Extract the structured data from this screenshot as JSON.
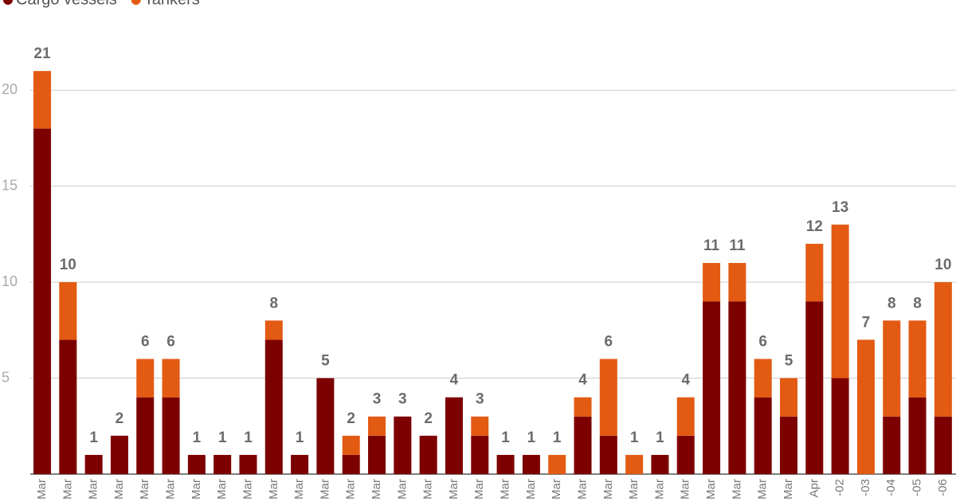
{
  "chart_data": {
    "type": "stacked_bar",
    "categories": [
      "Mar",
      "Mar",
      "Mar",
      "Mar",
      "Mar",
      "Mar",
      "Mar",
      "Mar",
      "Mar",
      "Mar",
      "Mar",
      "Mar",
      "Mar",
      "Mar",
      "Mar",
      "Mar",
      "Mar",
      "Mar",
      "Mar",
      "Mar",
      "Mar",
      "Mar",
      "Mar",
      "Mar",
      "Mar",
      "Mar",
      "Mar",
      "Mar",
      "Mar",
      "Mar",
      "Apr",
      "-02",
      "-03",
      "-04",
      "-05",
      "-06"
    ],
    "series": [
      {
        "name": "Cargo vessels",
        "color": "#7d0000",
        "values": [
          18,
          7,
          1,
          2,
          4,
          4,
          1,
          1,
          1,
          7,
          1,
          5,
          1,
          2,
          3,
          2,
          4,
          2,
          1,
          1,
          0,
          3,
          2,
          0,
          1,
          2,
          9,
          9,
          4,
          3,
          9,
          5,
          0,
          3,
          4,
          3
        ]
      },
      {
        "name": "Tankers",
        "color": "#e35a13",
        "values": [
          3,
          3,
          0,
          0,
          2,
          2,
          0,
          0,
          0,
          1,
          0,
          0,
          1,
          1,
          0,
          0,
          0,
          1,
          0,
          0,
          1,
          1,
          4,
          1,
          0,
          2,
          2,
          2,
          2,
          2,
          3,
          8,
          7,
          5,
          4,
          7
        ]
      }
    ],
    "totals": [
      21,
      10,
      1,
      2,
      6,
      6,
      1,
      1,
      1,
      8,
      1,
      5,
      2,
      3,
      3,
      2,
      4,
      3,
      1,
      1,
      1,
      4,
      6,
      1,
      1,
      4,
      11,
      11,
      6,
      5,
      12,
      13,
      7,
      8,
      8,
      10
    ],
    "ylim": [
      0,
      24.7
    ],
    "yticks": [
      5,
      10,
      15,
      20
    ],
    "grid": true
  }
}
